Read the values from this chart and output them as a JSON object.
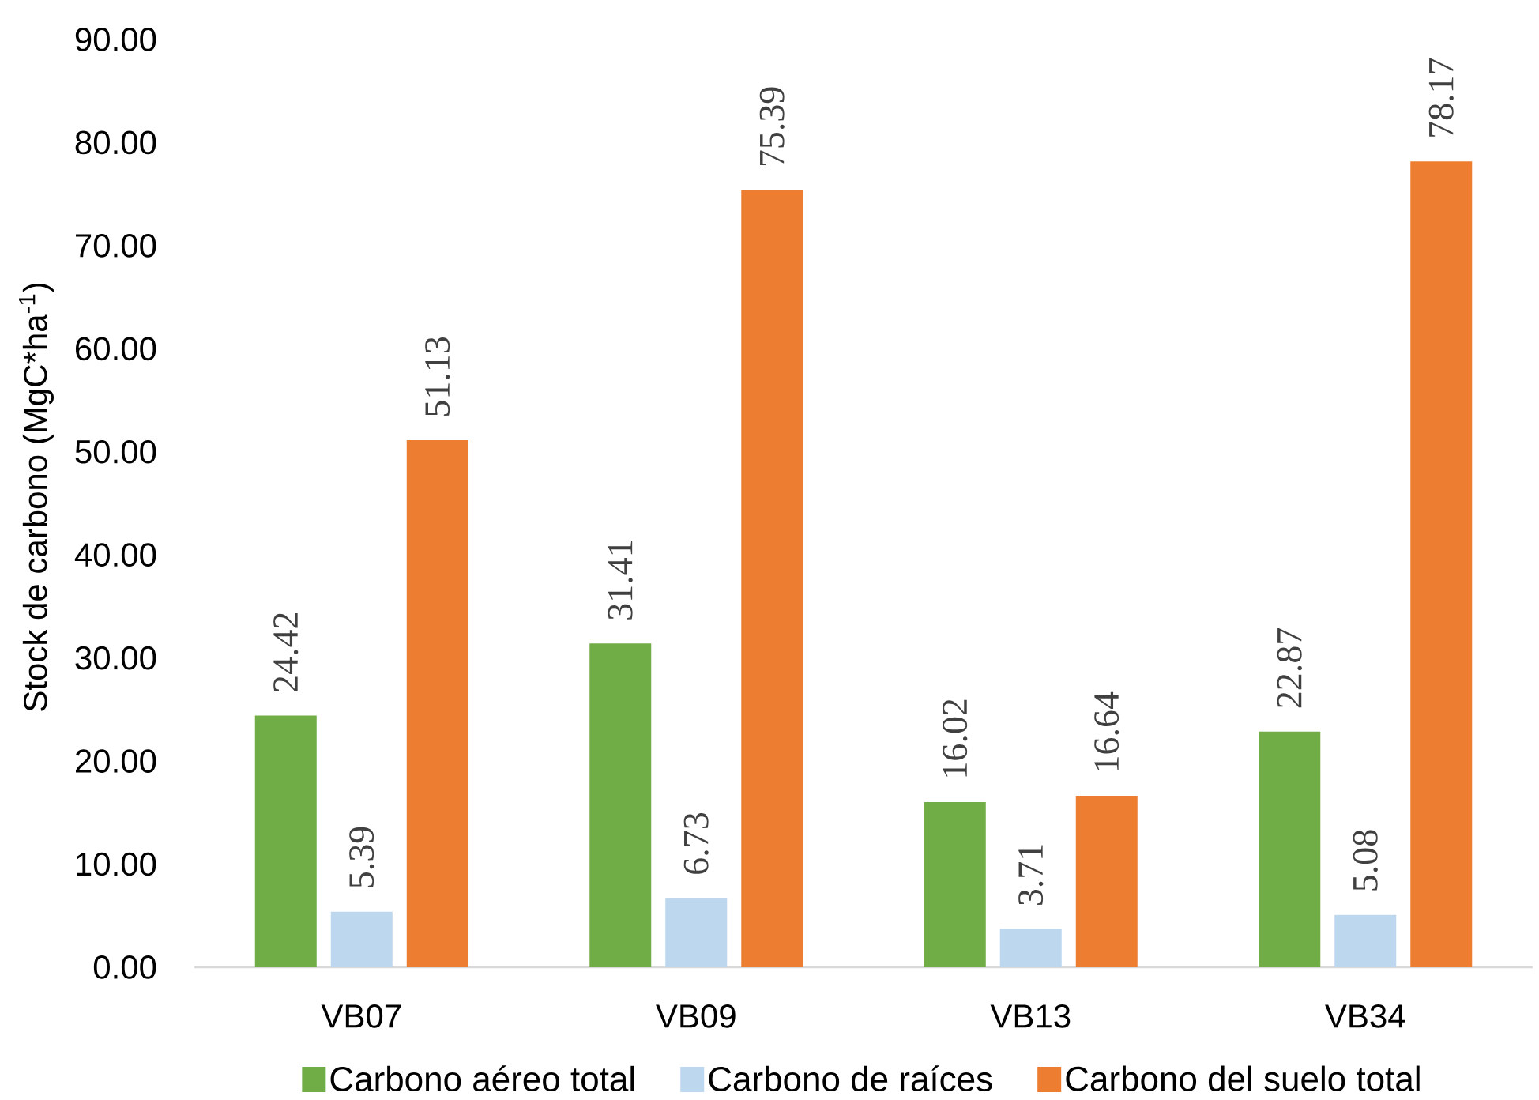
{
  "chart_data": {
    "type": "bar",
    "ylabel": "Stock de carbono (MgC*ha$^{-1}$)",
    "categories": [
      "VB07",
      "VB09",
      "VB13",
      "VB34"
    ],
    "series": [
      {
        "name": "Carbono aéreo total",
        "color": "#70ad47",
        "values": [
          24.42,
          31.41,
          16.02,
          22.87
        ]
      },
      {
        "name": "Carbono de raíces",
        "color": "#bdd7ee",
        "values": [
          5.39,
          6.73,
          3.71,
          5.08
        ]
      },
      {
        "name": "Carbono del suelo total",
        "color": "#ed7d31",
        "values": [
          51.13,
          75.39,
          16.64,
          78.17
        ]
      }
    ],
    "ylim": [
      0,
      90
    ],
    "yticks": [
      {
        "value": 0,
        "label": "0.00"
      },
      {
        "value": 10,
        "label": "10.00"
      },
      {
        "value": 20,
        "label": "20.00"
      },
      {
        "value": 30,
        "label": "30.00"
      },
      {
        "value": 40,
        "label": "40.00"
      },
      {
        "value": 50,
        "label": "50.00"
      },
      {
        "value": 60,
        "label": "60.00"
      },
      {
        "value": 70,
        "label": "70.00"
      },
      {
        "value": 80,
        "label": "80.00"
      },
      {
        "value": 90,
        "label": "90.00"
      }
    ],
    "data_labels": true,
    "legend": "bottom"
  }
}
